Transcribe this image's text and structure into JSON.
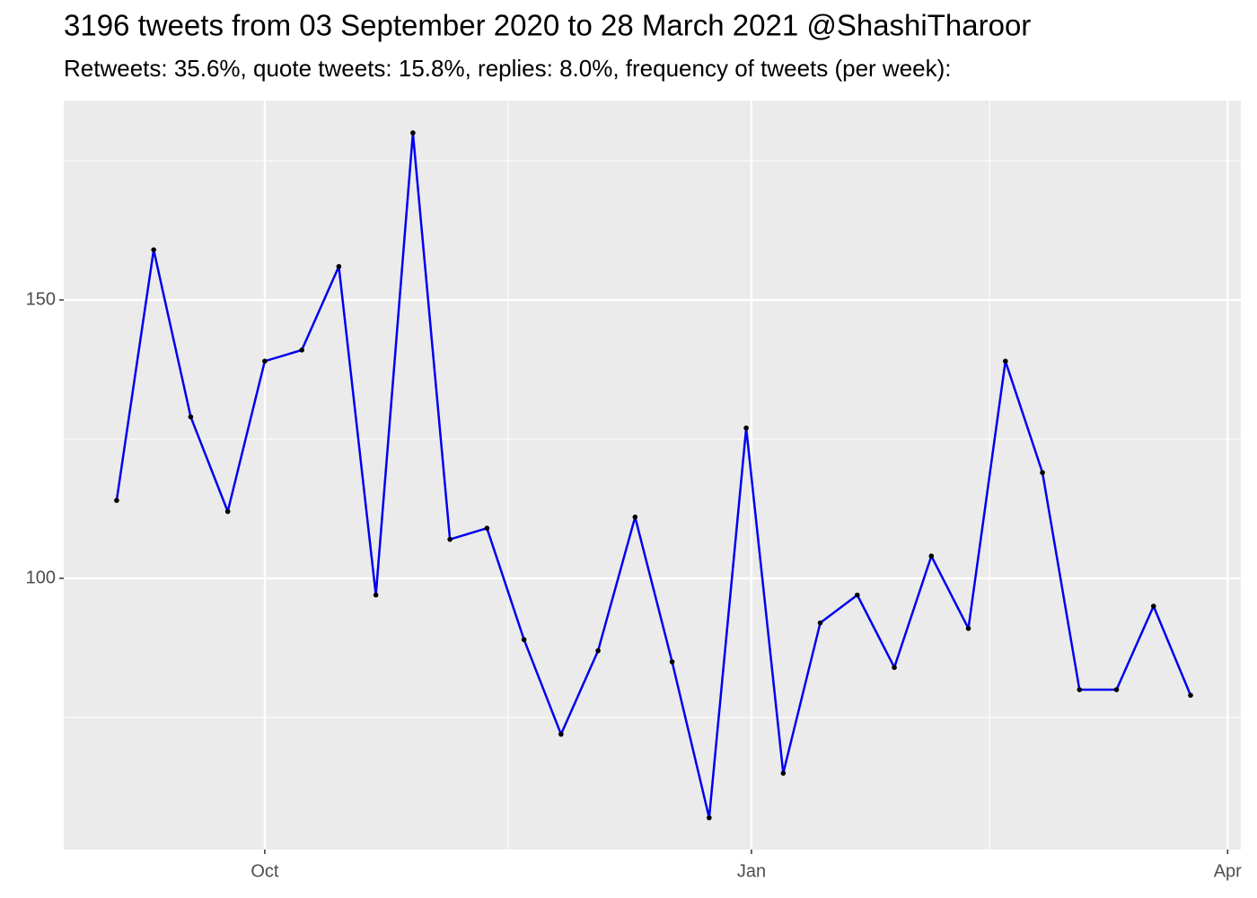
{
  "chart_data": {
    "type": "line",
    "title": "3196 tweets from 03 September 2020 to 28 March 2021 @ShashiTharoor",
    "subtitle": "Retweets: 35.6%, quote tweets: 15.8%, replies: 8.0%, frequency of tweets (per week):",
    "x": [
      -28,
      -21,
      -14,
      -7,
      0,
      7,
      14,
      21,
      28,
      35,
      42,
      49,
      56,
      63,
      70,
      77,
      84,
      91,
      98,
      105,
      112,
      119,
      126,
      133,
      140,
      147,
      154,
      161,
      168,
      175
    ],
    "values": [
      114,
      159,
      129,
      112,
      139,
      141,
      156,
      97,
      180,
      107,
      109,
      89,
      72,
      87,
      111,
      85,
      57,
      127,
      65,
      92,
      97,
      84,
      104,
      91,
      139,
      119,
      80,
      80,
      95,
      79
    ],
    "color": "#0000ee",
    "point_color": "#000000",
    "xlim": [
      -38,
      184.5
    ],
    "xticks": [
      {
        "value": 0,
        "label": "Oct"
      },
      {
        "value": 92,
        "label": "Jan"
      },
      {
        "value": 182,
        "label": "Apr"
      }
    ],
    "x_minor_ticks": [
      46,
      137
    ],
    "ylim": [
      51.3,
      185.8
    ],
    "yticks": [
      100,
      150
    ],
    "y_minor_ticks": [
      75,
      125,
      175
    ],
    "grid": true
  }
}
